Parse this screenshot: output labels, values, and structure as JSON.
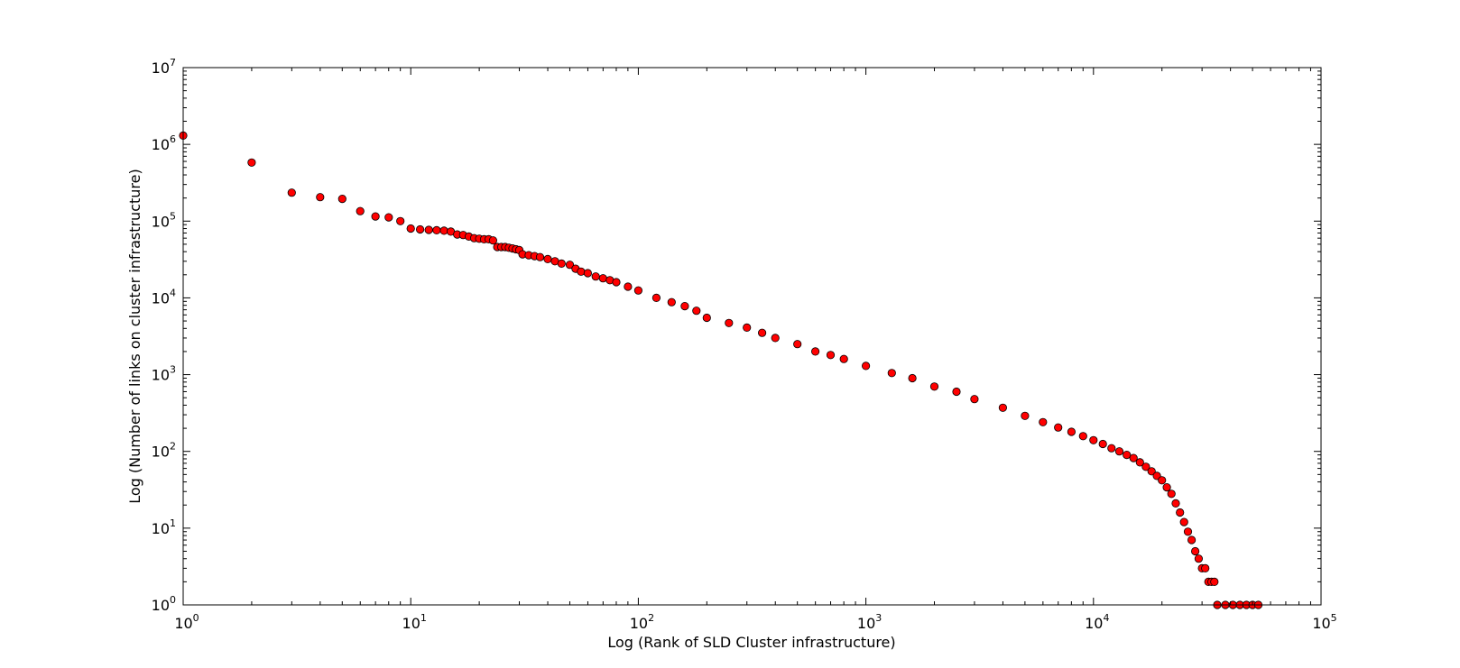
{
  "chart_data": {
    "type": "scatter",
    "title": "",
    "xlabel": "Log (Rank of SLD Cluster infrastructure)",
    "ylabel": "Log (Number of links on cluster infrastructure)",
    "xscale": "log",
    "yscale": "log",
    "xlim": [
      1,
      100000
    ],
    "ylim": [
      1,
      10000000
    ],
    "grid": false,
    "legend": "none",
    "marker": {
      "shape": "circle",
      "fill": "#ff0000",
      "edge": "#000000"
    },
    "x_ticks": [
      {
        "base": "10",
        "exp": "0"
      },
      {
        "base": "10",
        "exp": "1"
      },
      {
        "base": "10",
        "exp": "2"
      },
      {
        "base": "10",
        "exp": "3"
      },
      {
        "base": "10",
        "exp": "4"
      },
      {
        "base": "10",
        "exp": "5"
      }
    ],
    "y_ticks": [
      {
        "base": "10",
        "exp": "0"
      },
      {
        "base": "10",
        "exp": "1"
      },
      {
        "base": "10",
        "exp": "2"
      },
      {
        "base": "10",
        "exp": "3"
      },
      {
        "base": "10",
        "exp": "4"
      },
      {
        "base": "10",
        "exp": "5"
      },
      {
        "base": "10",
        "exp": "6"
      },
      {
        "base": "10",
        "exp": "7"
      }
    ],
    "points": [
      [
        1,
        1300000
      ],
      [
        2,
        580000
      ],
      [
        3,
        235000
      ],
      [
        4,
        205000
      ],
      [
        5,
        195000
      ],
      [
        6,
        135000
      ],
      [
        7,
        115000
      ],
      [
        8,
        112000
      ],
      [
        9,
        100000
      ],
      [
        10,
        80000
      ],
      [
        11,
        78000
      ],
      [
        12,
        77000
      ],
      [
        13,
        76000
      ],
      [
        14,
        75000
      ],
      [
        15,
        73000
      ],
      [
        16,
        67000
      ],
      [
        17,
        66000
      ],
      [
        18,
        63000
      ],
      [
        19,
        60000
      ],
      [
        20,
        59000
      ],
      [
        21,
        58000
      ],
      [
        22,
        58000
      ],
      [
        23,
        56000
      ],
      [
        24,
        46000
      ],
      [
        25,
        46000
      ],
      [
        26,
        46000
      ],
      [
        27,
        45000
      ],
      [
        28,
        44000
      ],
      [
        29,
        43000
      ],
      [
        30,
        42000
      ],
      [
        31,
        37000
      ],
      [
        33,
        36000
      ],
      [
        35,
        35000
      ],
      [
        37,
        34000
      ],
      [
        40,
        32000
      ],
      [
        43,
        30000
      ],
      [
        46,
        28000
      ],
      [
        50,
        27000
      ],
      [
        53,
        24000
      ],
      [
        56,
        22000
      ],
      [
        60,
        21000
      ],
      [
        65,
        19000
      ],
      [
        70,
        18000
      ],
      [
        75,
        17000
      ],
      [
        80,
        16000
      ],
      [
        90,
        14000
      ],
      [
        100,
        12500
      ],
      [
        120,
        10000
      ],
      [
        140,
        8800
      ],
      [
        160,
        7800
      ],
      [
        180,
        6800
      ],
      [
        200,
        5500
      ],
      [
        250,
        4700
      ],
      [
        300,
        4100
      ],
      [
        350,
        3500
      ],
      [
        400,
        3000
      ],
      [
        500,
        2500
      ],
      [
        600,
        2000
      ],
      [
        700,
        1800
      ],
      [
        800,
        1600
      ],
      [
        1000,
        1300
      ],
      [
        1300,
        1050
      ],
      [
        1600,
        900
      ],
      [
        2000,
        700
      ],
      [
        2500,
        600
      ],
      [
        3000,
        480
      ],
      [
        4000,
        370
      ],
      [
        5000,
        290
      ],
      [
        6000,
        240
      ],
      [
        7000,
        205
      ],
      [
        8000,
        180
      ],
      [
        9000,
        158
      ],
      [
        10000,
        140
      ],
      [
        11000,
        125
      ],
      [
        12000,
        110
      ],
      [
        13000,
        100
      ],
      [
        14000,
        90
      ],
      [
        15000,
        82
      ],
      [
        16000,
        72
      ],
      [
        17000,
        63
      ],
      [
        18000,
        55
      ],
      [
        19000,
        48
      ],
      [
        20000,
        42
      ],
      [
        21000,
        34
      ],
      [
        22000,
        28
      ],
      [
        23000,
        21
      ],
      [
        24000,
        16
      ],
      [
        25000,
        12
      ],
      [
        26000,
        9
      ],
      [
        27000,
        7
      ],
      [
        28000,
        5
      ],
      [
        29000,
        4
      ],
      [
        30000,
        3
      ],
      [
        31000,
        3
      ],
      [
        32000,
        2
      ],
      [
        33000,
        2
      ],
      [
        34000,
        2
      ],
      [
        35000,
        1
      ],
      [
        38000,
        1
      ],
      [
        41000,
        1
      ],
      [
        44000,
        1
      ],
      [
        47000,
        1
      ],
      [
        50000,
        1
      ],
      [
        53000,
        1
      ]
    ]
  }
}
